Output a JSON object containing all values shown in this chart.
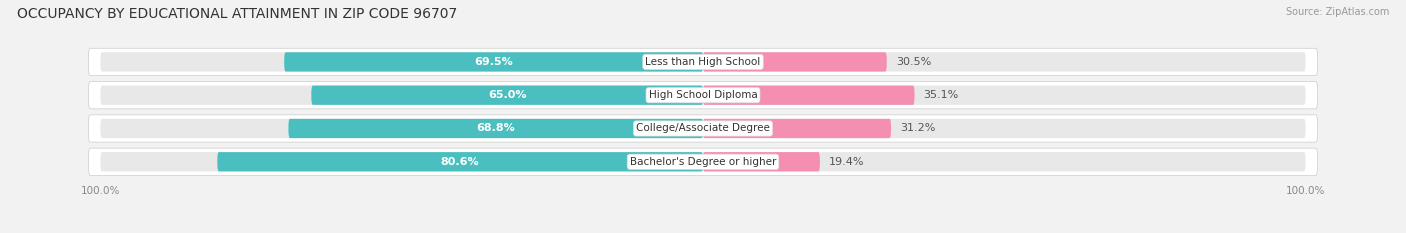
{
  "title": "OCCUPANCY BY EDUCATIONAL ATTAINMENT IN ZIP CODE 96707",
  "source": "Source: ZipAtlas.com",
  "categories": [
    "Less than High School",
    "High School Diploma",
    "College/Associate Degree",
    "Bachelor's Degree or higher"
  ],
  "owner_values": [
    69.5,
    65.0,
    68.8,
    80.6
  ],
  "renter_values": [
    30.5,
    35.1,
    31.2,
    19.4
  ],
  "owner_color": "#4BBFBF",
  "renter_color": "#F48FB1",
  "bg_color": "#f2f2f2",
  "bar_bg_color": "#e8e8e8",
  "bar_row_bg": "#ffffff",
  "title_fontsize": 10,
  "label_fontsize": 8,
  "tick_fontsize": 7.5,
  "legend_fontsize": 8,
  "source_fontsize": 7
}
